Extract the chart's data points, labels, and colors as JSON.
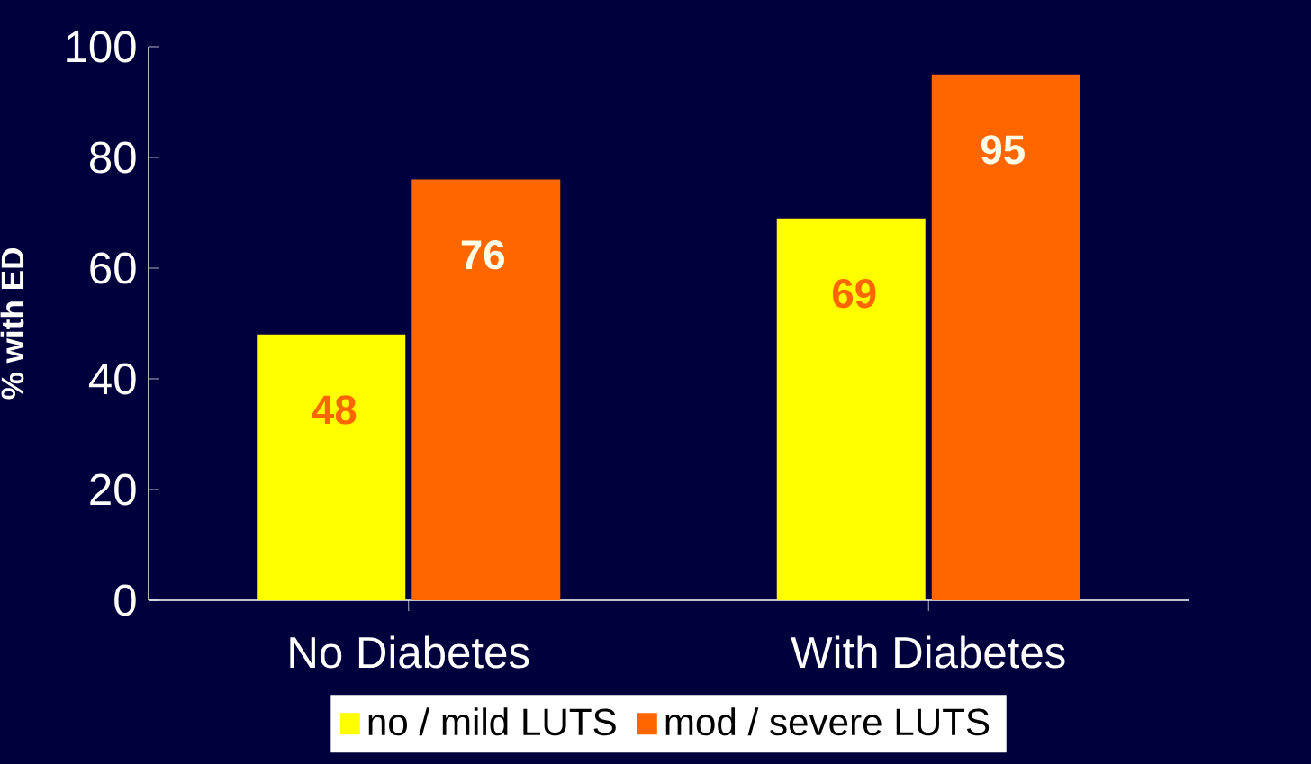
{
  "chart_data": {
    "type": "bar",
    "ylabel": "% with ED",
    "categories": [
      "No Diabetes",
      "With Diabetes"
    ],
    "series": [
      {
        "name": "no / mild LUTS",
        "color": "#ffff00",
        "values": [
          48,
          69
        ]
      },
      {
        "name": "mod / severe LUTS",
        "color": "#ff6600",
        "values": [
          76,
          95
        ]
      }
    ],
    "ylim": [
      0,
      100
    ],
    "yticks": [
      0,
      20,
      40,
      60,
      80,
      100
    ],
    "data_labels": true,
    "legend": "bottom"
  }
}
